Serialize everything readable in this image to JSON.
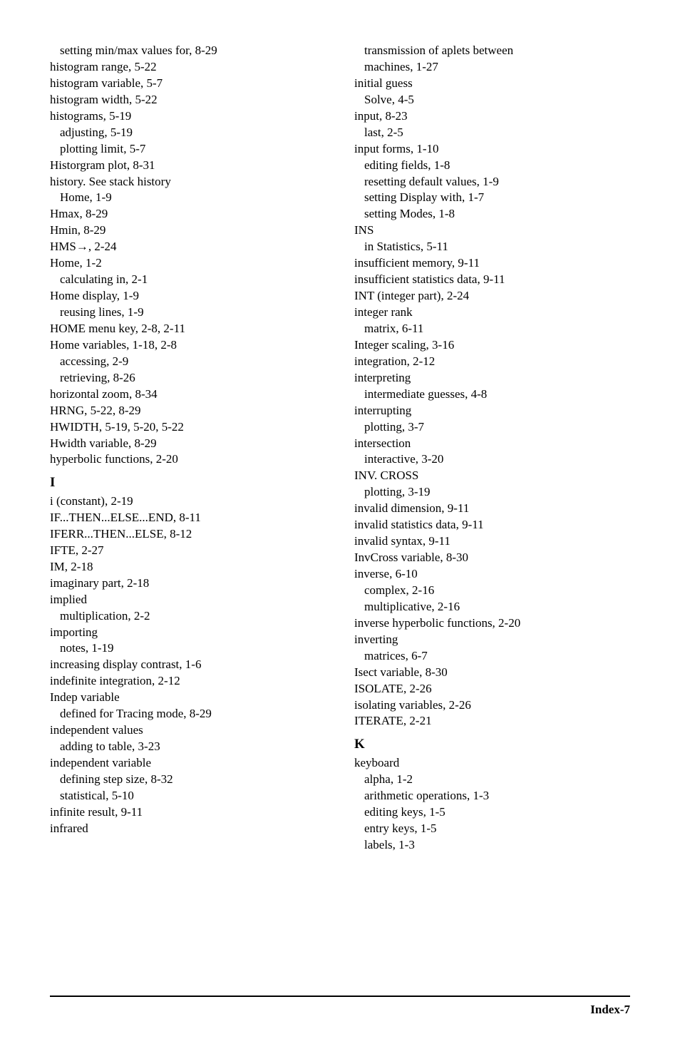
{
  "text_color": "#000000",
  "background_color": "#ffffff",
  "font_family": "Times New Roman",
  "body_fontsize": 17,
  "heading_fontsize": 19,
  "footer": "Index-7",
  "left_column": [
    {
      "text": "setting min/max values for, 8-29",
      "indent": 1
    },
    {
      "text": "histogram range, 5-22",
      "indent": 0
    },
    {
      "text": "histogram variable, 5-7",
      "indent": 0
    },
    {
      "text": "histogram width, 5-22",
      "indent": 0
    },
    {
      "text": "histograms, 5-19",
      "indent": 0
    },
    {
      "text": "adjusting, 5-19",
      "indent": 1
    },
    {
      "text": "plotting limit, 5-7",
      "indent": 1
    },
    {
      "text": "Historgram plot, 8-31",
      "indent": 0
    },
    {
      "text": "history. See stack history",
      "indent": 0
    },
    {
      "text": "Home, 1-9",
      "indent": 1
    },
    {
      "text": "Hmax, 8-29",
      "indent": 0
    },
    {
      "text": "Hmin, 8-29",
      "indent": 0
    },
    {
      "text": "HMS→, 2-24",
      "indent": 0
    },
    {
      "text": "Home, 1-2",
      "indent": 0
    },
    {
      "text": "calculating in, 2-1",
      "indent": 1
    },
    {
      "text": "Home display, 1-9",
      "indent": 0
    },
    {
      "text": "reusing lines, 1-9",
      "indent": 1
    },
    {
      "text": "HOME menu key, 2-8, 2-11",
      "indent": 0
    },
    {
      "text": "Home variables, 1-18, 2-8",
      "indent": 0
    },
    {
      "text": "accessing, 2-9",
      "indent": 1
    },
    {
      "text": "retrieving, 8-26",
      "indent": 1
    },
    {
      "text": "horizontal zoom, 8-34",
      "indent": 0
    },
    {
      "text": "HRNG, 5-22, 8-29",
      "indent": 0
    },
    {
      "text": "HWIDTH, 5-19, 5-20, 5-22",
      "indent": 0
    },
    {
      "text": "Hwidth variable, 8-29",
      "indent": 0
    },
    {
      "text": "hyperbolic functions, 2-20",
      "indent": 0
    },
    {
      "text": "I",
      "indent": 0,
      "heading": true
    },
    {
      "text": "i (constant), 2-19",
      "indent": 0
    },
    {
      "text": "IF...THEN...ELSE...END, 8-11",
      "indent": 0
    },
    {
      "text": "IFERR...THEN...ELSE, 8-12",
      "indent": 0
    },
    {
      "text": "IFTE, 2-27",
      "indent": 0
    },
    {
      "text": "IM, 2-18",
      "indent": 0
    },
    {
      "text": "imaginary part, 2-18",
      "indent": 0
    },
    {
      "text": "implied",
      "indent": 0
    },
    {
      "text": "multiplication, 2-2",
      "indent": 1
    },
    {
      "text": "importing",
      "indent": 0
    },
    {
      "text": "notes, 1-19",
      "indent": 1
    },
    {
      "text": "increasing display contrast, 1-6",
      "indent": 0
    },
    {
      "text": "indefinite integration, 2-12",
      "indent": 0
    },
    {
      "text": "Indep variable",
      "indent": 0
    },
    {
      "text": "defined for Tracing mode, 8-29",
      "indent": 1
    },
    {
      "text": "independent values",
      "indent": 0
    },
    {
      "text": "adding to table, 3-23",
      "indent": 1
    },
    {
      "text": "independent variable",
      "indent": 0
    },
    {
      "text": "defining step size, 8-32",
      "indent": 1
    },
    {
      "text": "statistical, 5-10",
      "indent": 1
    },
    {
      "text": "infinite result, 9-11",
      "indent": 0
    },
    {
      "text": "infrared",
      "indent": 0
    }
  ],
  "right_column": [
    {
      "text": "transmission of aplets between",
      "indent": 1
    },
    {
      "text": "machines, 1-27",
      "indent": 1
    },
    {
      "text": "initial guess",
      "indent": 0
    },
    {
      "text": "Solve, 4-5",
      "indent": 1
    },
    {
      "text": "input, 8-23",
      "indent": 0
    },
    {
      "text": "last, 2-5",
      "indent": 1
    },
    {
      "text": "input forms, 1-10",
      "indent": 0
    },
    {
      "text": "editing fields, 1-8",
      "indent": 1
    },
    {
      "text": "resetting default values, 1-9",
      "indent": 1
    },
    {
      "text": "setting Display with, 1-7",
      "indent": 1
    },
    {
      "text": "setting Modes, 1-8",
      "indent": 1
    },
    {
      "text": "INS",
      "indent": 0
    },
    {
      "text": "in Statistics, 5-11",
      "indent": 1
    },
    {
      "text": "insufficient memory, 9-11",
      "indent": 0
    },
    {
      "text": "insufficient statistics data, 9-11",
      "indent": 0
    },
    {
      "text": "INT (integer part), 2-24",
      "indent": 0
    },
    {
      "text": "integer rank",
      "indent": 0
    },
    {
      "text": "matrix, 6-11",
      "indent": 1
    },
    {
      "text": "Integer scaling, 3-16",
      "indent": 0
    },
    {
      "text": "integration, 2-12",
      "indent": 0
    },
    {
      "text": "interpreting",
      "indent": 0
    },
    {
      "text": "intermediate guesses, 4-8",
      "indent": 1
    },
    {
      "text": "interrupting",
      "indent": 0
    },
    {
      "text": "plotting, 3-7",
      "indent": 1
    },
    {
      "text": "intersection",
      "indent": 0
    },
    {
      "text": "interactive, 3-20",
      "indent": 1
    },
    {
      "text": "INV. CROSS",
      "indent": 0
    },
    {
      "text": "plotting, 3-19",
      "indent": 1
    },
    {
      "text": "invalid dimension, 9-11",
      "indent": 0
    },
    {
      "text": "invalid statistics data, 9-11",
      "indent": 0
    },
    {
      "text": "invalid syntax, 9-11",
      "indent": 0
    },
    {
      "text": "InvCross variable, 8-30",
      "indent": 0
    },
    {
      "text": "inverse, 6-10",
      "indent": 0
    },
    {
      "text": "complex, 2-16",
      "indent": 1
    },
    {
      "text": "multiplicative, 2-16",
      "indent": 1
    },
    {
      "text": "inverse hyperbolic functions, 2-20",
      "indent": 0
    },
    {
      "text": "inverting",
      "indent": 0
    },
    {
      "text": "matrices, 6-7",
      "indent": 1
    },
    {
      "text": "Isect variable, 8-30",
      "indent": 0
    },
    {
      "text": "ISOLATE, 2-26",
      "indent": 0
    },
    {
      "text": "isolating variables, 2-26",
      "indent": 0
    },
    {
      "text": "ITERATE, 2-21",
      "indent": 0
    },
    {
      "text": "K",
      "indent": 0,
      "heading": true
    },
    {
      "text": "keyboard",
      "indent": 0
    },
    {
      "text": "alpha, 1-2",
      "indent": 1
    },
    {
      "text": "arithmetic operations, 1-3",
      "indent": 1
    },
    {
      "text": "editing keys, 1-5",
      "indent": 1
    },
    {
      "text": "entry keys, 1-5",
      "indent": 1
    },
    {
      "text": "labels, 1-3",
      "indent": 1
    }
  ]
}
